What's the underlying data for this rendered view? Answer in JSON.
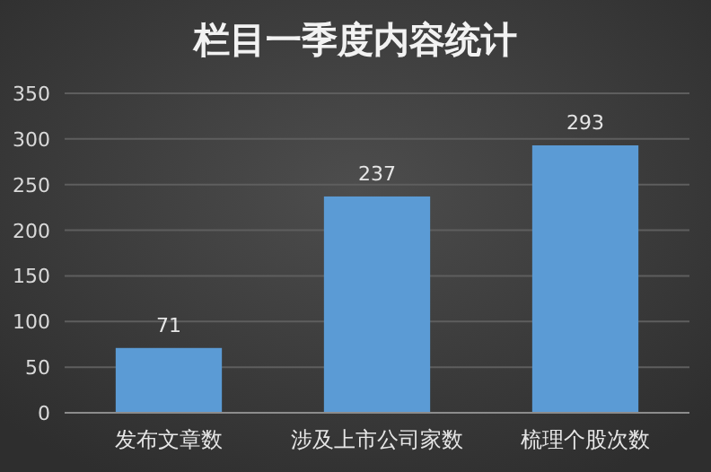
{
  "chart_data": {
    "type": "bar",
    "title": "栏目一季度内容统计",
    "categories": [
      "发布文章数",
      "涉及上市公司家数",
      "梳理个股次数"
    ],
    "values": [
      71,
      237,
      293
    ],
    "color": "#5b9bd5",
    "ylim": [
      0,
      350
    ],
    "yticks": [
      0,
      50,
      100,
      150,
      200,
      250,
      300,
      350
    ],
    "grid": "y",
    "data_labels": true
  }
}
